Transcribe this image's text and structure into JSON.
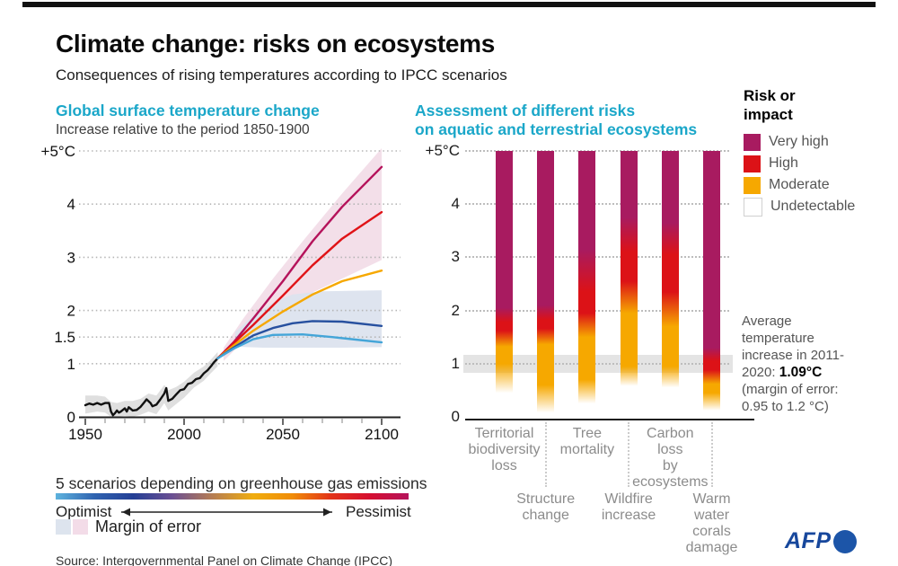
{
  "header": {
    "title": "Climate change: risks on ecosystems",
    "subtitle": "Consequences of rising temperatures according to IPCC scenarios"
  },
  "right_chart_header": {
    "line1": "Assessment of different risks",
    "line2": "on aquatic and terrestrial ecosystems"
  },
  "risk_legend": {
    "title": "Risk or\nimpact",
    "items": [
      {
        "label": "Very high",
        "color": "#a81b60",
        "border": ""
      },
      {
        "label": "High",
        "color": "#dc1217",
        "border": ""
      },
      {
        "label": "Moderate",
        "color": "#f6a800",
        "border": ""
      },
      {
        "label": "Undetectable",
        "color": "#ffffff",
        "border": "#d0d0d0"
      }
    ]
  },
  "annotation": {
    "text_before": "Average temperature increase in 2011-2020: ",
    "value": "1.09°C",
    "text_after": " (margin of error: 0.95 to 1.2 °C)"
  },
  "scenarios_legend": {
    "caption": "5 scenarios depending on greenhouse gas emissions",
    "optimist": "Optimist",
    "pessimist": "Pessimist",
    "gradient": [
      "#5eb3de",
      "#2f63b0",
      "#243f95",
      "#6b4f93",
      "#b37b55",
      "#f0ad0e",
      "#f08c07",
      "#e23318",
      "#d50f31",
      "#b5135b"
    ]
  },
  "margin_legend": {
    "label": "Margin of error",
    "swatches": [
      "#dde4ee",
      "#f3dce8"
    ]
  },
  "source": "Source: Intergovernmental Panel on Climate Change (IPCC)",
  "afp": {
    "label": "AFP"
  },
  "chart_data": [
    {
      "id": "temperature",
      "type": "line",
      "title": "Global surface temperature change",
      "subtitle": "Increase relative to the period 1850-1900",
      "xlim": [
        1950,
        2100
      ],
      "ylim": [
        0,
        5
      ],
      "grid": "dotted",
      "y_ticks": [
        {
          "label": "+5°C",
          "v": 5
        },
        {
          "label": "4",
          "v": 4
        },
        {
          "label": "3",
          "v": 3
        },
        {
          "label": "2",
          "v": 2
        },
        {
          "label": "1.5",
          "v": 1.5
        },
        {
          "label": "1",
          "v": 1
        },
        {
          "label": "0",
          "v": 0
        }
      ],
      "x_ticks": [
        1950,
        2000,
        2050,
        2100
      ],
      "x_minor_step": 10,
      "bands": [
        {
          "name": "historical-margin",
          "color": "#dcdcdc",
          "opacity": 0.9,
          "upper": [
            [
              1950,
              0.4
            ],
            [
              1956,
              0.4
            ],
            [
              1960,
              0.38
            ],
            [
              1963,
              0.28
            ],
            [
              1966,
              0.26
            ],
            [
              1970,
              0.3
            ],
            [
              1974,
              0.3
            ],
            [
              1978,
              0.34
            ],
            [
              1982,
              0.44
            ],
            [
              1986,
              0.4
            ],
            [
              1990,
              0.6
            ],
            [
              1992,
              0.5
            ],
            [
              1996,
              0.56
            ],
            [
              2000,
              0.66
            ],
            [
              2005,
              0.83
            ],
            [
              2010,
              0.95
            ],
            [
              2013,
              1.05
            ],
            [
              2017,
              1.22
            ]
          ],
          "lower": [
            [
              1950,
              0.06
            ],
            [
              1956,
              0.1
            ],
            [
              1960,
              0.08
            ],
            [
              1963,
              0.0
            ],
            [
              1966,
              0.0
            ],
            [
              1970,
              0.02
            ],
            [
              1974,
              0.0
            ],
            [
              1978,
              0.04
            ],
            [
              1982,
              0.1
            ],
            [
              1986,
              0.05
            ],
            [
              1990,
              0.26
            ],
            [
              1992,
              0.12
            ],
            [
              1996,
              0.24
            ],
            [
              2000,
              0.36
            ],
            [
              2005,
              0.55
            ],
            [
              2010,
              0.68
            ],
            [
              2013,
              0.8
            ],
            [
              2017,
              0.95
            ]
          ]
        },
        {
          "name": "pessimist-margin",
          "color": "#f0d7e3",
          "opacity": 0.8,
          "upper": [
            [
              2020,
              1.3
            ],
            [
              2030,
              1.85
            ],
            [
              2045,
              2.6
            ],
            [
              2060,
              3.3
            ],
            [
              2080,
              4.2
            ],
            [
              2100,
              5.05
            ]
          ],
          "lower": [
            [
              2020,
              1.05
            ],
            [
              2030,
              1.42
            ],
            [
              2045,
              1.85
            ],
            [
              2060,
              2.25
            ],
            [
              2080,
              2.6
            ],
            [
              2100,
              2.95
            ]
          ]
        },
        {
          "name": "optimist-margin",
          "color": "#dce3ee",
          "opacity": 0.95,
          "upper": [
            [
              2026,
              1.6
            ],
            [
              2035,
              1.9
            ],
            [
              2045,
              2.15
            ],
            [
              2055,
              2.3
            ],
            [
              2070,
              2.36
            ],
            [
              2100,
              2.38
            ]
          ],
          "lower": [
            [
              2026,
              1.32
            ],
            [
              2040,
              1.3
            ],
            [
              2060,
              1.3
            ],
            [
              2080,
              1.3
            ],
            [
              2100,
              1.31
            ]
          ]
        }
      ],
      "series": [
        {
          "name": "observed",
          "color": "#111111",
          "width": 2.4,
          "points": [
            [
              1950,
              0.22
            ],
            [
              1952,
              0.25
            ],
            [
              1954,
              0.23
            ],
            [
              1956,
              0.26
            ],
            [
              1958,
              0.23
            ],
            [
              1960,
              0.26
            ],
            [
              1962,
              0.26
            ],
            [
              1963,
              0.1
            ],
            [
              1964,
              0.03
            ],
            [
              1965,
              0.07
            ],
            [
              1966,
              0.12
            ],
            [
              1967,
              0.08
            ],
            [
              1968,
              0.1
            ],
            [
              1970,
              0.16
            ],
            [
              1971,
              0.1
            ],
            [
              1972,
              0.18
            ],
            [
              1974,
              0.12
            ],
            [
              1976,
              0.13
            ],
            [
              1978,
              0.19
            ],
            [
              1980,
              0.28
            ],
            [
              1981,
              0.33
            ],
            [
              1983,
              0.26
            ],
            [
              1984,
              0.2
            ],
            [
              1986,
              0.23
            ],
            [
              1988,
              0.33
            ],
            [
              1990,
              0.44
            ],
            [
              1991,
              0.54
            ],
            [
              1992,
              0.3
            ],
            [
              1994,
              0.34
            ],
            [
              1996,
              0.42
            ],
            [
              1998,
              0.5
            ],
            [
              2000,
              0.52
            ],
            [
              2002,
              0.62
            ],
            [
              2004,
              0.64
            ],
            [
              2006,
              0.71
            ],
            [
              2008,
              0.73
            ],
            [
              2010,
              0.82
            ],
            [
              2012,
              0.88
            ],
            [
              2014,
              0.97
            ],
            [
              2015,
              1.02
            ],
            [
              2017,
              1.1
            ]
          ]
        },
        {
          "name": "scenario-pessimist",
          "color": "#b5135b",
          "width": 2.4,
          "points": [
            [
              2017,
              1.1
            ],
            [
              2025,
              1.4
            ],
            [
              2035,
              1.85
            ],
            [
              2050,
              2.55
            ],
            [
              2065,
              3.3
            ],
            [
              2080,
              3.95
            ],
            [
              2100,
              4.7
            ]
          ]
        },
        {
          "name": "scenario-high",
          "color": "#e01317",
          "width": 2.4,
          "points": [
            [
              2017,
              1.1
            ],
            [
              2025,
              1.38
            ],
            [
              2035,
              1.73
            ],
            [
              2050,
              2.28
            ],
            [
              2065,
              2.85
            ],
            [
              2080,
              3.35
            ],
            [
              2100,
              3.85
            ]
          ]
        },
        {
          "name": "scenario-intermediate",
          "color": "#f6a800",
          "width": 2.4,
          "points": [
            [
              2017,
              1.1
            ],
            [
              2025,
              1.34
            ],
            [
              2035,
              1.62
            ],
            [
              2050,
              1.98
            ],
            [
              2065,
              2.3
            ],
            [
              2080,
              2.55
            ],
            [
              2100,
              2.75
            ]
          ]
        },
        {
          "name": "scenario-low",
          "color": "#27509f",
          "width": 2.4,
          "points": [
            [
              2017,
              1.1
            ],
            [
              2025,
              1.3
            ],
            [
              2035,
              1.53
            ],
            [
              2045,
              1.67
            ],
            [
              2055,
              1.76
            ],
            [
              2065,
              1.8
            ],
            [
              2080,
              1.79
            ],
            [
              2100,
              1.71
            ]
          ]
        },
        {
          "name": "scenario-optimist",
          "color": "#44a5d8",
          "width": 2.4,
          "points": [
            [
              2017,
              1.1
            ],
            [
              2025,
              1.28
            ],
            [
              2035,
              1.46
            ],
            [
              2045,
              1.54
            ],
            [
              2060,
              1.55
            ],
            [
              2075,
              1.5
            ],
            [
              2100,
              1.4
            ]
          ]
        }
      ]
    },
    {
      "id": "ecosystem-risks",
      "type": "bar",
      "title": "Assessment of different risks on aquatic and terrestrial ecosystems",
      "ylim": [
        0,
        5
      ],
      "y_ticks": [
        {
          "label": "+5°C",
          "v": 5
        },
        {
          "label": "4",
          "v": 4
        },
        {
          "label": "3",
          "v": 3
        },
        {
          "label": "2",
          "v": 2
        },
        {
          "label": "1",
          "v": 1
        },
        {
          "label": "0",
          "v": 0
        }
      ],
      "current_band": {
        "from": 0.82,
        "to": 1.16,
        "color": "#e4e4e4"
      },
      "risk_scale": [
        "Very high",
        "High",
        "Moderate",
        "Undetectable"
      ],
      "bars": [
        {
          "label": "Territorial\nbiodiversity\nloss",
          "row": 1,
          "stops": [
            [
              "#a81b60",
              5
            ],
            [
              "#a81b60",
              2.05
            ],
            [
              "#dc1217",
              1.78
            ],
            [
              "#dc1217",
              1.62
            ],
            [
              "#f6a800",
              1.32
            ],
            [
              "#f6a800",
              1.0
            ],
            [
              "fade",
              0.45
            ]
          ]
        },
        {
          "label": "Structure\nchange",
          "row": 2,
          "stops": [
            [
              "#a81b60",
              5
            ],
            [
              "#a81b60",
              2.1
            ],
            [
              "#dc1217",
              1.82
            ],
            [
              "#dc1217",
              1.66
            ],
            [
              "#f6a800",
              1.36
            ],
            [
              "#f6a800",
              0.6
            ],
            [
              "fade",
              0.08
            ]
          ]
        },
        {
          "label": "Tree\nmortality",
          "row": 1,
          "stops": [
            [
              "#a81b60",
              5
            ],
            [
              "#a81b60",
              3.15
            ],
            [
              "#dc1217",
              2.35
            ],
            [
              "#dc1217",
              1.95
            ],
            [
              "#f6a800",
              1.5
            ],
            [
              "#f6a800",
              0.7
            ],
            [
              "fade",
              0.25
            ]
          ]
        },
        {
          "label": "Wildfire\nincrease",
          "row": 2,
          "stops": [
            [
              "#a81b60",
              5
            ],
            [
              "#a81b60",
              3.75
            ],
            [
              "#dc1217",
              3.1
            ],
            [
              "#dc1217",
              2.55
            ],
            [
              "#f6a800",
              1.95
            ],
            [
              "#f6a800",
              0.95
            ],
            [
              "fade",
              0.58
            ]
          ]
        },
        {
          "label": "Carbon\nloss\nby\necosystems",
          "row": 1,
          "stops": [
            [
              "#a81b60",
              5
            ],
            [
              "#a81b60",
              3.65
            ],
            [
              "#dc1217",
              3.05
            ],
            [
              "#dc1217",
              2.35
            ],
            [
              "#f6a800",
              1.7
            ],
            [
              "#f6a800",
              0.95
            ],
            [
              "fade",
              0.55
            ]
          ]
        },
        {
          "label": "Warm\nwater\ncorals\ndamage",
          "row": 2,
          "stops": [
            [
              "#a81b60",
              5
            ],
            [
              "#a81b60",
              1.3
            ],
            [
              "#dc1217",
              1.05
            ],
            [
              "#dc1217",
              0.88
            ],
            [
              "#f6a800",
              0.62
            ],
            [
              "#f6a800",
              0.45
            ],
            [
              "fade",
              0.12
            ]
          ]
        }
      ]
    }
  ]
}
